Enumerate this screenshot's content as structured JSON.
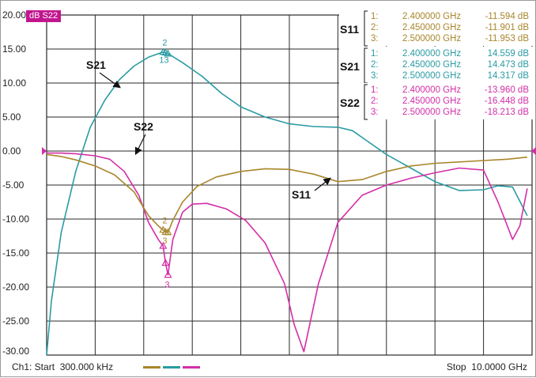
{
  "active_trace": "dB S22",
  "status_bar": {
    "start_text": "Ch1: Start  300.000 kHz",
    "stop_text": "Stop  10.0000 GHz"
  },
  "colors": {
    "S11": "#a8862a",
    "S21": "#2a9ba3",
    "S22": "#d42ea8",
    "grid": "#2a2a2a",
    "active_label_bg": "#c2168f"
  },
  "marker_tables": [
    {
      "trace": "S11",
      "rows": [
        {
          "num": "1:",
          "freq": "2.400000 GHz",
          "val": "-11.594 dB"
        },
        {
          "num": "2:",
          "freq": "2.450000 GHz",
          "val": "-11.901 dB"
        },
        {
          "num": "3:",
          "freq": "2.500000 GHz",
          "val": "-11.953 dB"
        }
      ]
    },
    {
      "trace": "S21",
      "rows": [
        {
          "num": "1:",
          "freq": "2.400000 GHz",
          "val": "14.559 dB"
        },
        {
          "num": "2:",
          "freq": "2.450000 GHz",
          "val": "14.473 dB"
        },
        {
          "num": "3:",
          "freq": "2.500000 GHz",
          "val": "14.317 dB"
        }
      ]
    },
    {
      "trace": "S22",
      "rows": [
        {
          "num": "1:",
          "freq": "2.400000 GHz",
          "val": "-13.960 dB"
        },
        {
          "num": "2:",
          "freq": "2.450000 GHz",
          "val": "-16.448 dB"
        },
        {
          "num": "3:",
          "freq": "2.500000 GHz",
          "val": "-18.213 dB"
        }
      ]
    }
  ],
  "annotations": [
    {
      "text": "S21",
      "target": "S21"
    },
    {
      "text": "S22",
      "target": "S22"
    },
    {
      "text": "S11",
      "target": "S11"
    }
  ],
  "marker_labels": {
    "S21": [
      "2",
      "13"
    ],
    "S11": [
      "2",
      "3"
    ],
    "S22": [
      "3"
    ]
  },
  "chart_data": {
    "type": "line",
    "title": "",
    "xlabel": "",
    "ylabel": "",
    "xlim": [
      0.0003,
      10
    ],
    "ylim": [
      -30,
      20
    ],
    "x_units": "GHz",
    "y_units": "dB",
    "y_ticks": [
      20,
      15,
      10,
      5,
      0,
      -5,
      -10,
      -15,
      -20,
      -25,
      -30
    ],
    "y_tick_labels": [
      "20.00",
      "15.00",
      "10.00",
      "5.00",
      "0.00",
      "-5.00",
      "-10.00",
      "-15.00",
      "-20.00",
      "-25.00",
      "-30.00"
    ],
    "grid": true,
    "reference_level": 0,
    "series": [
      {
        "name": "S21",
        "x": [
          0.0003,
          0.1,
          0.3,
          0.6,
          0.9,
          1.2,
          1.5,
          1.8,
          2.1,
          2.4,
          2.45,
          2.5,
          2.8,
          3.2,
          3.6,
          4.0,
          4.5,
          5.0,
          5.5,
          6.0,
          6.3,
          6.6,
          7.0,
          7.5,
          8.0,
          8.5,
          9.0,
          9.3,
          9.6,
          9.9
        ],
        "y": [
          -30,
          -22,
          -12,
          -3,
          3.5,
          7.5,
          10.5,
          12.5,
          13.8,
          14.56,
          14.47,
          14.32,
          13.0,
          11.0,
          8.5,
          6.5,
          5.0,
          4.0,
          3.6,
          3.5,
          3.0,
          1.5,
          -0.5,
          -2.5,
          -4.5,
          -5.8,
          -5.7,
          -5.1,
          -5.3,
          -9.5
        ]
      },
      {
        "name": "S22",
        "x": [
          0.0003,
          0.3,
          0.6,
          1.0,
          1.3,
          1.6,
          1.9,
          2.1,
          2.3,
          2.4,
          2.45,
          2.5,
          2.6,
          2.8,
          3.0,
          3.3,
          3.7,
          4.1,
          4.5,
          4.9,
          5.1,
          5.3,
          5.6,
          6.0,
          6.5,
          7.0,
          7.5,
          8.0,
          8.5,
          9.0,
          9.3,
          9.6,
          9.75,
          9.9
        ],
        "y": [
          -0.3,
          -0.3,
          -0.4,
          -0.7,
          -1.2,
          -3.0,
          -6.5,
          -10.5,
          -13.0,
          -13.96,
          -16.45,
          -18.21,
          -13.0,
          -9.0,
          -7.8,
          -7.7,
          -8.5,
          -10.2,
          -13.5,
          -19.5,
          -25.5,
          -29.5,
          -19.5,
          -10.5,
          -6.5,
          -5.0,
          -4.0,
          -3.2,
          -2.5,
          -2.8,
          -7.5,
          -13.0,
          -11.0,
          -5.5
        ]
      },
      {
        "name": "S11",
        "x": [
          0.0003,
          0.3,
          0.6,
          1.0,
          1.4,
          1.8,
          2.1,
          2.3,
          2.4,
          2.45,
          2.5,
          2.6,
          2.8,
          3.1,
          3.5,
          4.0,
          4.5,
          5.0,
          5.5,
          6.0,
          6.5,
          7.0,
          7.5,
          8.0,
          8.5,
          9.0,
          9.5,
          9.9
        ],
        "y": [
          -0.5,
          -0.8,
          -1.3,
          -2.2,
          -3.5,
          -6.0,
          -9.5,
          -11.0,
          -11.59,
          -11.9,
          -11.95,
          -10.2,
          -7.5,
          -5.2,
          -3.8,
          -3.0,
          -2.6,
          -2.7,
          -3.4,
          -4.5,
          -4.2,
          -3.0,
          -2.2,
          -1.8,
          -1.6,
          -1.4,
          -1.2,
          -0.9
        ]
      }
    ]
  }
}
